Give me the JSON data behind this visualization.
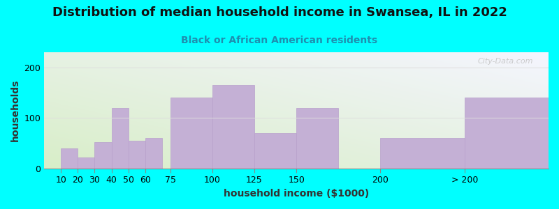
{
  "title": "Distribution of median household income in Swansea, IL in 2022",
  "subtitle": "Black or African American residents",
  "xlabel": "household income ($1000)",
  "ylabel": "households",
  "bg_color": "#00FFFF",
  "bar_color": "#C4B0D5",
  "bar_edge_color": "#B8A0CC",
  "categories": [
    "10",
    "20",
    "30",
    "40",
    "50",
    "60",
    "75",
    "100",
    "125",
    "150",
    "200",
    "> 200"
  ],
  "x_positions": [
    10,
    20,
    30,
    40,
    50,
    60,
    75,
    100,
    125,
    150,
    200,
    250
  ],
  "x_widths": [
    10,
    10,
    10,
    10,
    10,
    10,
    25,
    25,
    25,
    25,
    50,
    50
  ],
  "values": [
    40,
    22,
    52,
    120,
    55,
    60,
    140,
    165,
    70,
    120,
    60,
    140
  ],
  "ylim": [
    0,
    230
  ],
  "yticks": [
    0,
    100,
    200
  ],
  "watermark": "City-Data.com",
  "title_fontsize": 13,
  "subtitle_fontsize": 10,
  "axis_label_fontsize": 10,
  "tick_fontsize": 9,
  "x_tick_positions": [
    10,
    20,
    30,
    40,
    50,
    60,
    75,
    100,
    125,
    150,
    200,
    250
  ],
  "x_tick_labels": [
    "10",
    "20",
    "30",
    "40",
    "50",
    "60",
    "75",
    "100",
    "125",
    "150",
    "200",
    "> 200"
  ]
}
